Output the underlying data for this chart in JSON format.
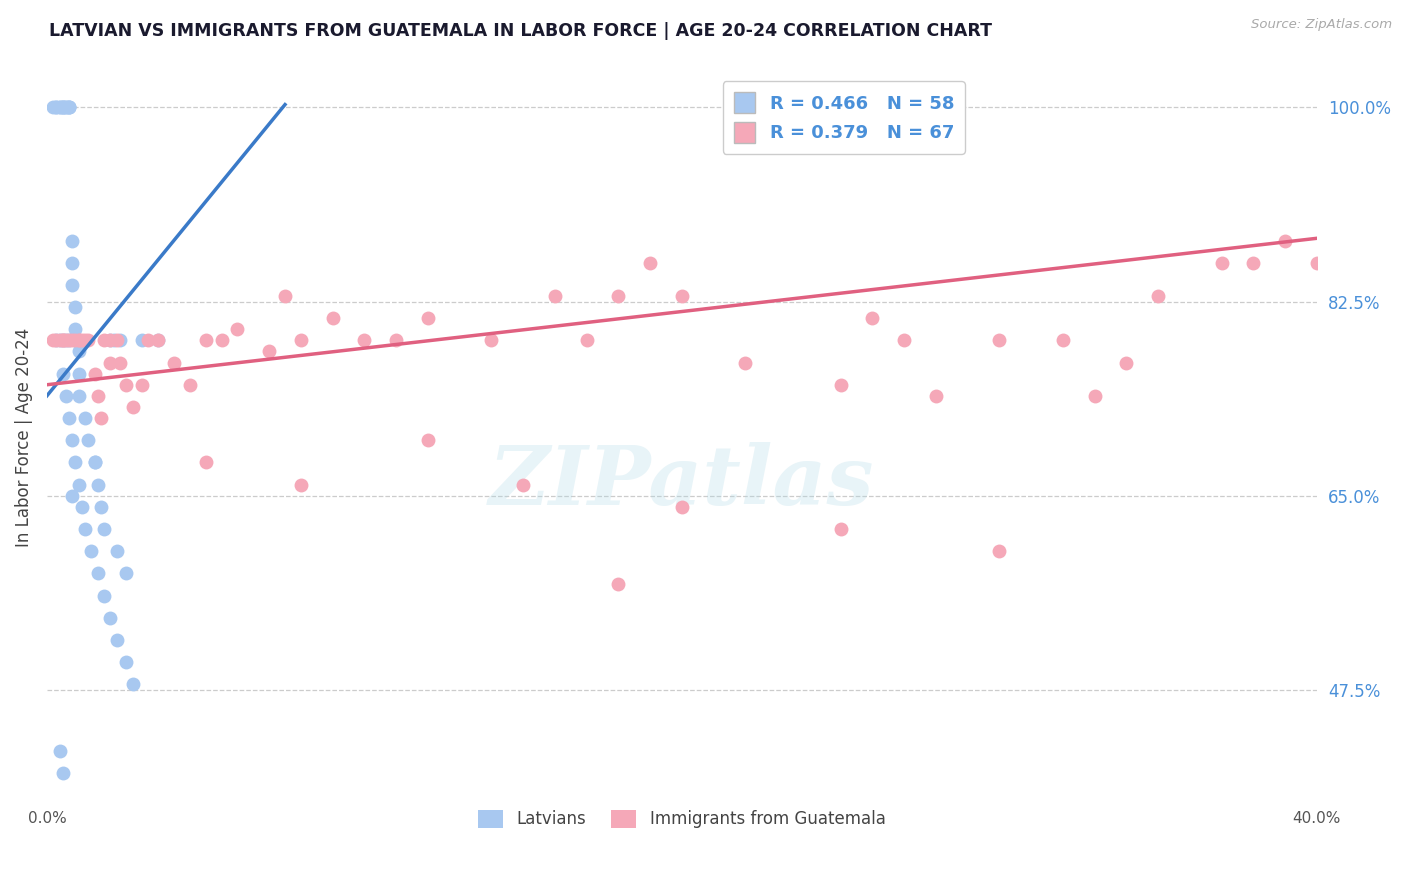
{
  "title": "LATVIAN VS IMMIGRANTS FROM GUATEMALA IN LABOR FORCE | AGE 20-24 CORRELATION CHART",
  "source_text": "Source: ZipAtlas.com",
  "ylabel": "In Labor Force | Age 20-24",
  "x_min": 0.0,
  "x_max": 40.0,
  "y_min": 37.0,
  "y_max": 103.5,
  "yticks": [
    47.5,
    65.0,
    82.5,
    100.0
  ],
  "ytick_labels": [
    "47.5%",
    "65.0%",
    "82.5%",
    "100.0%"
  ],
  "xtick_labels": [
    "0.0%",
    "40.0%"
  ],
  "blue_R": 0.466,
  "blue_N": 58,
  "pink_R": 0.379,
  "pink_N": 67,
  "blue_color": "#a8c8f0",
  "blue_line_color": "#3a7ac8",
  "pink_color": "#f5a8b8",
  "pink_line_color": "#e06080",
  "watermark_text": "ZIPatlas",
  "label_latvians": "Latvians",
  "label_immigrants": "Immigrants from Guatemala",
  "title_color": "#1a1a2e",
  "axis_label_color": "#4a90d9",
  "source_color": "#aaaaaa",
  "blue_x": [
    0.2,
    0.3,
    0.3,
    0.4,
    0.4,
    0.5,
    0.5,
    0.5,
    0.6,
    0.6,
    0.7,
    0.7,
    0.7,
    0.8,
    0.8,
    0.8,
    0.9,
    0.9,
    1.0,
    1.0,
    1.0,
    1.2,
    1.3,
    1.5,
    1.6,
    1.7,
    1.8,
    2.0,
    2.1,
    2.3,
    0.3,
    0.4,
    0.5,
    0.6,
    0.7,
    0.5,
    0.6,
    0.7,
    0.8,
    0.9,
    1.0,
    1.1,
    1.2,
    1.4,
    1.6,
    1.8,
    2.0,
    2.2,
    2.5,
    2.7,
    3.0,
    3.5,
    2.2,
    2.5,
    0.4,
    0.5,
    0.8,
    1.5
  ],
  "blue_y": [
    100.0,
    100.0,
    100.0,
    100.0,
    100.0,
    100.0,
    100.0,
    100.0,
    100.0,
    100.0,
    100.0,
    100.0,
    100.0,
    88.0,
    86.0,
    84.0,
    82.0,
    80.0,
    78.0,
    76.0,
    74.0,
    72.0,
    70.0,
    68.0,
    66.0,
    64.0,
    62.0,
    79.0,
    79.0,
    79.0,
    79.0,
    79.0,
    79.0,
    79.0,
    79.0,
    76.0,
    74.0,
    72.0,
    70.0,
    68.0,
    66.0,
    64.0,
    62.0,
    60.0,
    58.0,
    56.0,
    54.0,
    52.0,
    50.0,
    48.0,
    79.0,
    79.0,
    60.0,
    58.0,
    42.0,
    40.0,
    65.0,
    68.0
  ],
  "pink_x": [
    0.2,
    0.3,
    0.4,
    0.5,
    0.5,
    0.6,
    0.7,
    0.8,
    0.9,
    1.0,
    1.0,
    1.1,
    1.2,
    1.3,
    1.5,
    1.6,
    1.7,
    1.8,
    2.0,
    2.0,
    2.2,
    2.3,
    2.5,
    2.7,
    3.0,
    3.2,
    3.5,
    4.0,
    4.5,
    5.0,
    5.5,
    6.0,
    7.0,
    7.5,
    8.0,
    9.0,
    10.0,
    11.0,
    12.0,
    14.0,
    16.0,
    17.0,
    18.0,
    19.0,
    20.0,
    22.0,
    25.0,
    26.0,
    27.0,
    28.0,
    30.0,
    32.0,
    33.0,
    34.0,
    35.0,
    37.0,
    38.0,
    39.0,
    40.0,
    15.0,
    20.0,
    25.0,
    30.0,
    18.0,
    5.0,
    8.0,
    12.0
  ],
  "pink_y": [
    79.0,
    79.0,
    79.0,
    79.0,
    79.0,
    79.0,
    79.0,
    79.0,
    79.0,
    79.0,
    79.0,
    79.0,
    79.0,
    79.0,
    76.0,
    74.0,
    72.0,
    79.0,
    79.0,
    77.0,
    79.0,
    77.0,
    75.0,
    73.0,
    75.0,
    79.0,
    79.0,
    77.0,
    75.0,
    79.0,
    79.0,
    80.0,
    78.0,
    83.0,
    79.0,
    81.0,
    79.0,
    79.0,
    81.0,
    79.0,
    83.0,
    79.0,
    83.0,
    86.0,
    83.0,
    77.0,
    75.0,
    81.0,
    79.0,
    74.0,
    79.0,
    79.0,
    74.0,
    77.0,
    83.0,
    86.0,
    86.0,
    88.0,
    86.0,
    66.0,
    64.0,
    62.0,
    60.0,
    57.0,
    68.0,
    66.0,
    70.0
  ]
}
